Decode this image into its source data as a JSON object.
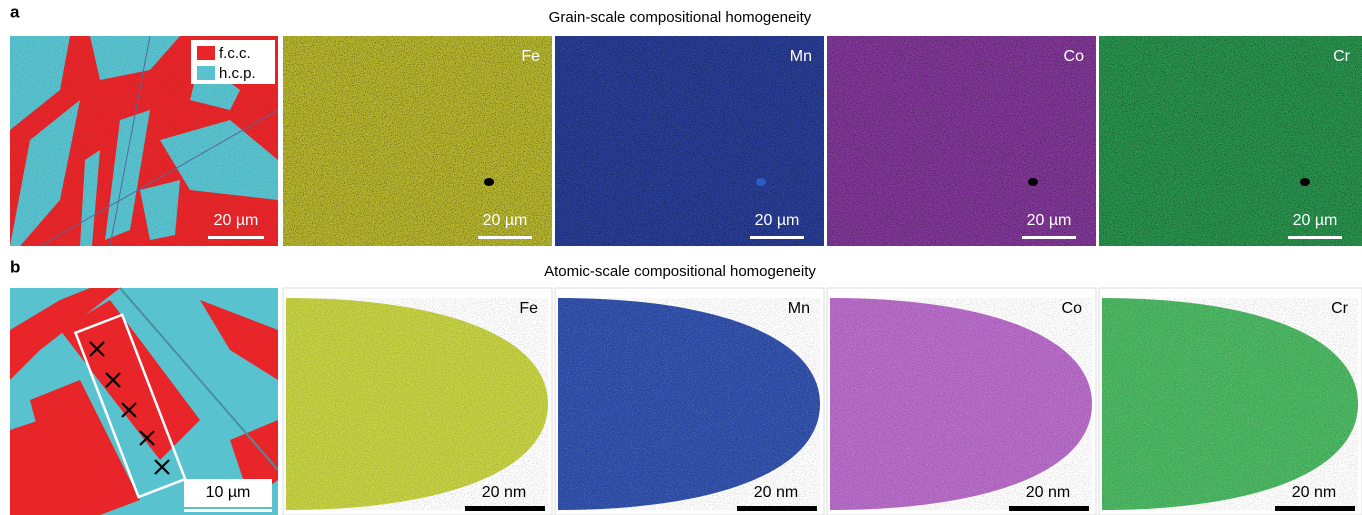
{
  "panel_a": {
    "label": "a",
    "title": "Grain-scale compositional homogeneity",
    "phase_map": {
      "legend": [
        "f.c.c.",
        "h.c.p."
      ],
      "scale_bar": "20 µm"
    },
    "element_maps": [
      {
        "element": "Fe",
        "scale_bar": "20 µm"
      },
      {
        "element": "Mn",
        "scale_bar": "20 µm"
      },
      {
        "element": "Co",
        "scale_bar": "20 µm"
      },
      {
        "element": "Cr",
        "scale_bar": "20 µm"
      }
    ]
  },
  "panel_b": {
    "label": "b",
    "title": "Atomic-scale compositional homogeneity",
    "phase_map": {
      "scale_bar": "10 µm"
    },
    "element_maps": [
      {
        "element": "Fe",
        "scale_bar": "20 nm"
      },
      {
        "element": "Mn",
        "scale_bar": "20 nm"
      },
      {
        "element": "Co",
        "scale_bar": "20 nm"
      },
      {
        "element": "Cr",
        "scale_bar": "20 nm"
      }
    ]
  }
}
